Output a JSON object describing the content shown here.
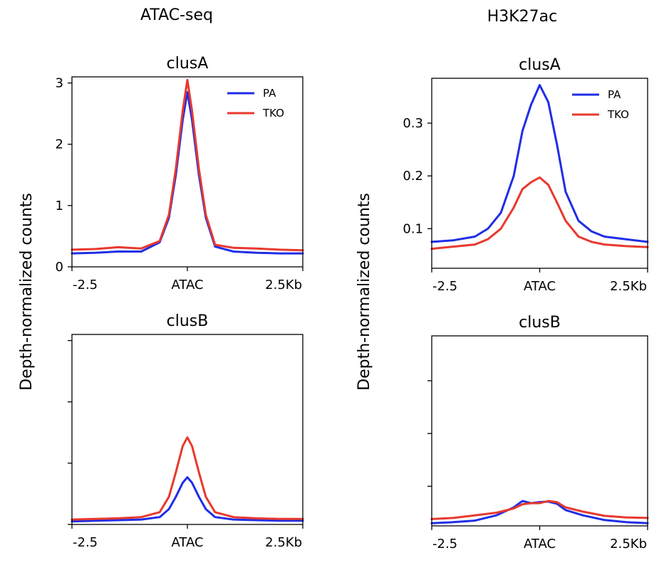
{
  "colors": {
    "PA": "#1f2ee6",
    "TKO": "#e8392e"
  },
  "column_titles": [
    "ATAC-seq",
    "H3K27ac"
  ],
  "ylabel": "Depth-normalized counts",
  "chart_data": [
    {
      "type": "line",
      "column": "ATAC-seq",
      "title": "clusA",
      "xlabel": "",
      "ylabel": "Depth-normalized counts",
      "x": [
        -2.5,
        -2.0,
        -1.5,
        -1.0,
        -0.6,
        -0.4,
        -0.25,
        -0.1,
        0.0,
        0.1,
        0.25,
        0.4,
        0.6,
        1.0,
        1.5,
        2.0,
        2.5
      ],
      "xlim": [
        -2.5,
        2.5
      ],
      "xticks": [
        -2.5,
        0,
        2.5
      ],
      "xtick_labels": [
        "-2.5",
        "ATAC",
        "2.5Kb"
      ],
      "ylim": [
        0,
        3.1
      ],
      "yticks": [
        0,
        1,
        2,
        3
      ],
      "ytick_labels": [
        "0",
        "1",
        "2",
        "3"
      ],
      "legend": "top-right",
      "series": [
        {
          "name": "PA",
          "values": [
            0.22,
            0.23,
            0.25,
            0.25,
            0.4,
            0.8,
            1.5,
            2.4,
            2.85,
            2.4,
            1.5,
            0.8,
            0.33,
            0.25,
            0.23,
            0.22,
            0.22
          ]
        },
        {
          "name": "TKO",
          "values": [
            0.28,
            0.29,
            0.32,
            0.3,
            0.42,
            0.85,
            1.6,
            2.55,
            3.05,
            2.55,
            1.6,
            0.85,
            0.36,
            0.31,
            0.3,
            0.28,
            0.27
          ]
        }
      ]
    },
    {
      "type": "line",
      "column": "ATAC-seq",
      "title": "clusB",
      "xlabel": "",
      "ylabel": "Depth-normalized counts",
      "x": [
        -2.5,
        -2.0,
        -1.5,
        -1.0,
        -0.6,
        -0.4,
        -0.25,
        -0.1,
        0.0,
        0.1,
        0.25,
        0.4,
        0.6,
        1.0,
        1.5,
        2.0,
        2.5
      ],
      "xlim": [
        -2.5,
        2.5
      ],
      "xticks": [
        -2.5,
        0,
        2.5
      ],
      "xtick_labels": [
        "-2.5",
        "ATAC",
        "2.5Kb"
      ],
      "ylim": [
        0,
        3.1
      ],
      "yticks": [
        0,
        1,
        2,
        3
      ],
      "ytick_labels": [],
      "series": [
        {
          "name": "PA",
          "values": [
            0.05,
            0.06,
            0.07,
            0.08,
            0.12,
            0.25,
            0.45,
            0.68,
            0.77,
            0.68,
            0.45,
            0.25,
            0.12,
            0.08,
            0.07,
            0.06,
            0.06
          ]
        },
        {
          "name": "TKO",
          "values": [
            0.08,
            0.09,
            0.1,
            0.12,
            0.2,
            0.45,
            0.85,
            1.28,
            1.42,
            1.28,
            0.85,
            0.45,
            0.2,
            0.12,
            0.1,
            0.09,
            0.09
          ]
        }
      ]
    },
    {
      "type": "line",
      "column": "H3K27ac",
      "title": "clusA",
      "xlabel": "",
      "ylabel": "Depth-normalized counts",
      "x": [
        -2.5,
        -2.0,
        -1.5,
        -1.2,
        -0.9,
        -0.6,
        -0.4,
        -0.2,
        0.0,
        0.2,
        0.4,
        0.6,
        0.9,
        1.2,
        1.5,
        2.0,
        2.5
      ],
      "xlim": [
        -2.5,
        2.5
      ],
      "xticks": [
        -2.5,
        0,
        2.5
      ],
      "xtick_labels": [
        "-2.5",
        "ATAC",
        "2.5Kb"
      ],
      "ylim": [
        0.025,
        0.385
      ],
      "yticks": [
        0.1,
        0.2,
        0.3
      ],
      "ytick_labels": [
        "0.1",
        "0.2",
        "0.3"
      ],
      "legend": "top-right",
      "series": [
        {
          "name": "PA",
          "values": [
            0.075,
            0.078,
            0.085,
            0.1,
            0.13,
            0.2,
            0.285,
            0.335,
            0.372,
            0.34,
            0.26,
            0.17,
            0.115,
            0.095,
            0.085,
            0.08,
            0.075
          ]
        },
        {
          "name": "TKO",
          "values": [
            0.062,
            0.066,
            0.07,
            0.08,
            0.1,
            0.14,
            0.175,
            0.188,
            0.197,
            0.183,
            0.15,
            0.115,
            0.085,
            0.075,
            0.07,
            0.067,
            0.065
          ]
        }
      ]
    },
    {
      "type": "line",
      "column": "H3K27ac",
      "title": "clusB",
      "xlabel": "",
      "ylabel": "Depth-normalized counts",
      "x": [
        -2.5,
        -2.0,
        -1.5,
        -1.0,
        -0.6,
        -0.4,
        -0.2,
        0.0,
        0.2,
        0.4,
        0.6,
        1.0,
        1.5,
        2.0,
        2.5
      ],
      "xlim": [
        -2.5,
        2.5
      ],
      "xticks": [
        -2.5,
        0,
        2.5
      ],
      "xtick_labels": [
        "-2.5",
        "ATAC",
        "2.5Kb"
      ],
      "ylim": [
        0.025,
        0.385
      ],
      "yticks": [
        0.1,
        0.2,
        0.3
      ],
      "ytick_labels": [],
      "series": [
        {
          "name": "PA",
          "values": [
            0.03,
            0.032,
            0.035,
            0.045,
            0.06,
            0.072,
            0.068,
            0.07,
            0.071,
            0.067,
            0.055,
            0.045,
            0.036,
            0.032,
            0.03
          ]
        },
        {
          "name": "TKO",
          "values": [
            0.038,
            0.04,
            0.045,
            0.05,
            0.058,
            0.066,
            0.068,
            0.068,
            0.072,
            0.07,
            0.06,
            0.052,
            0.044,
            0.041,
            0.04
          ]
        }
      ]
    }
  ]
}
